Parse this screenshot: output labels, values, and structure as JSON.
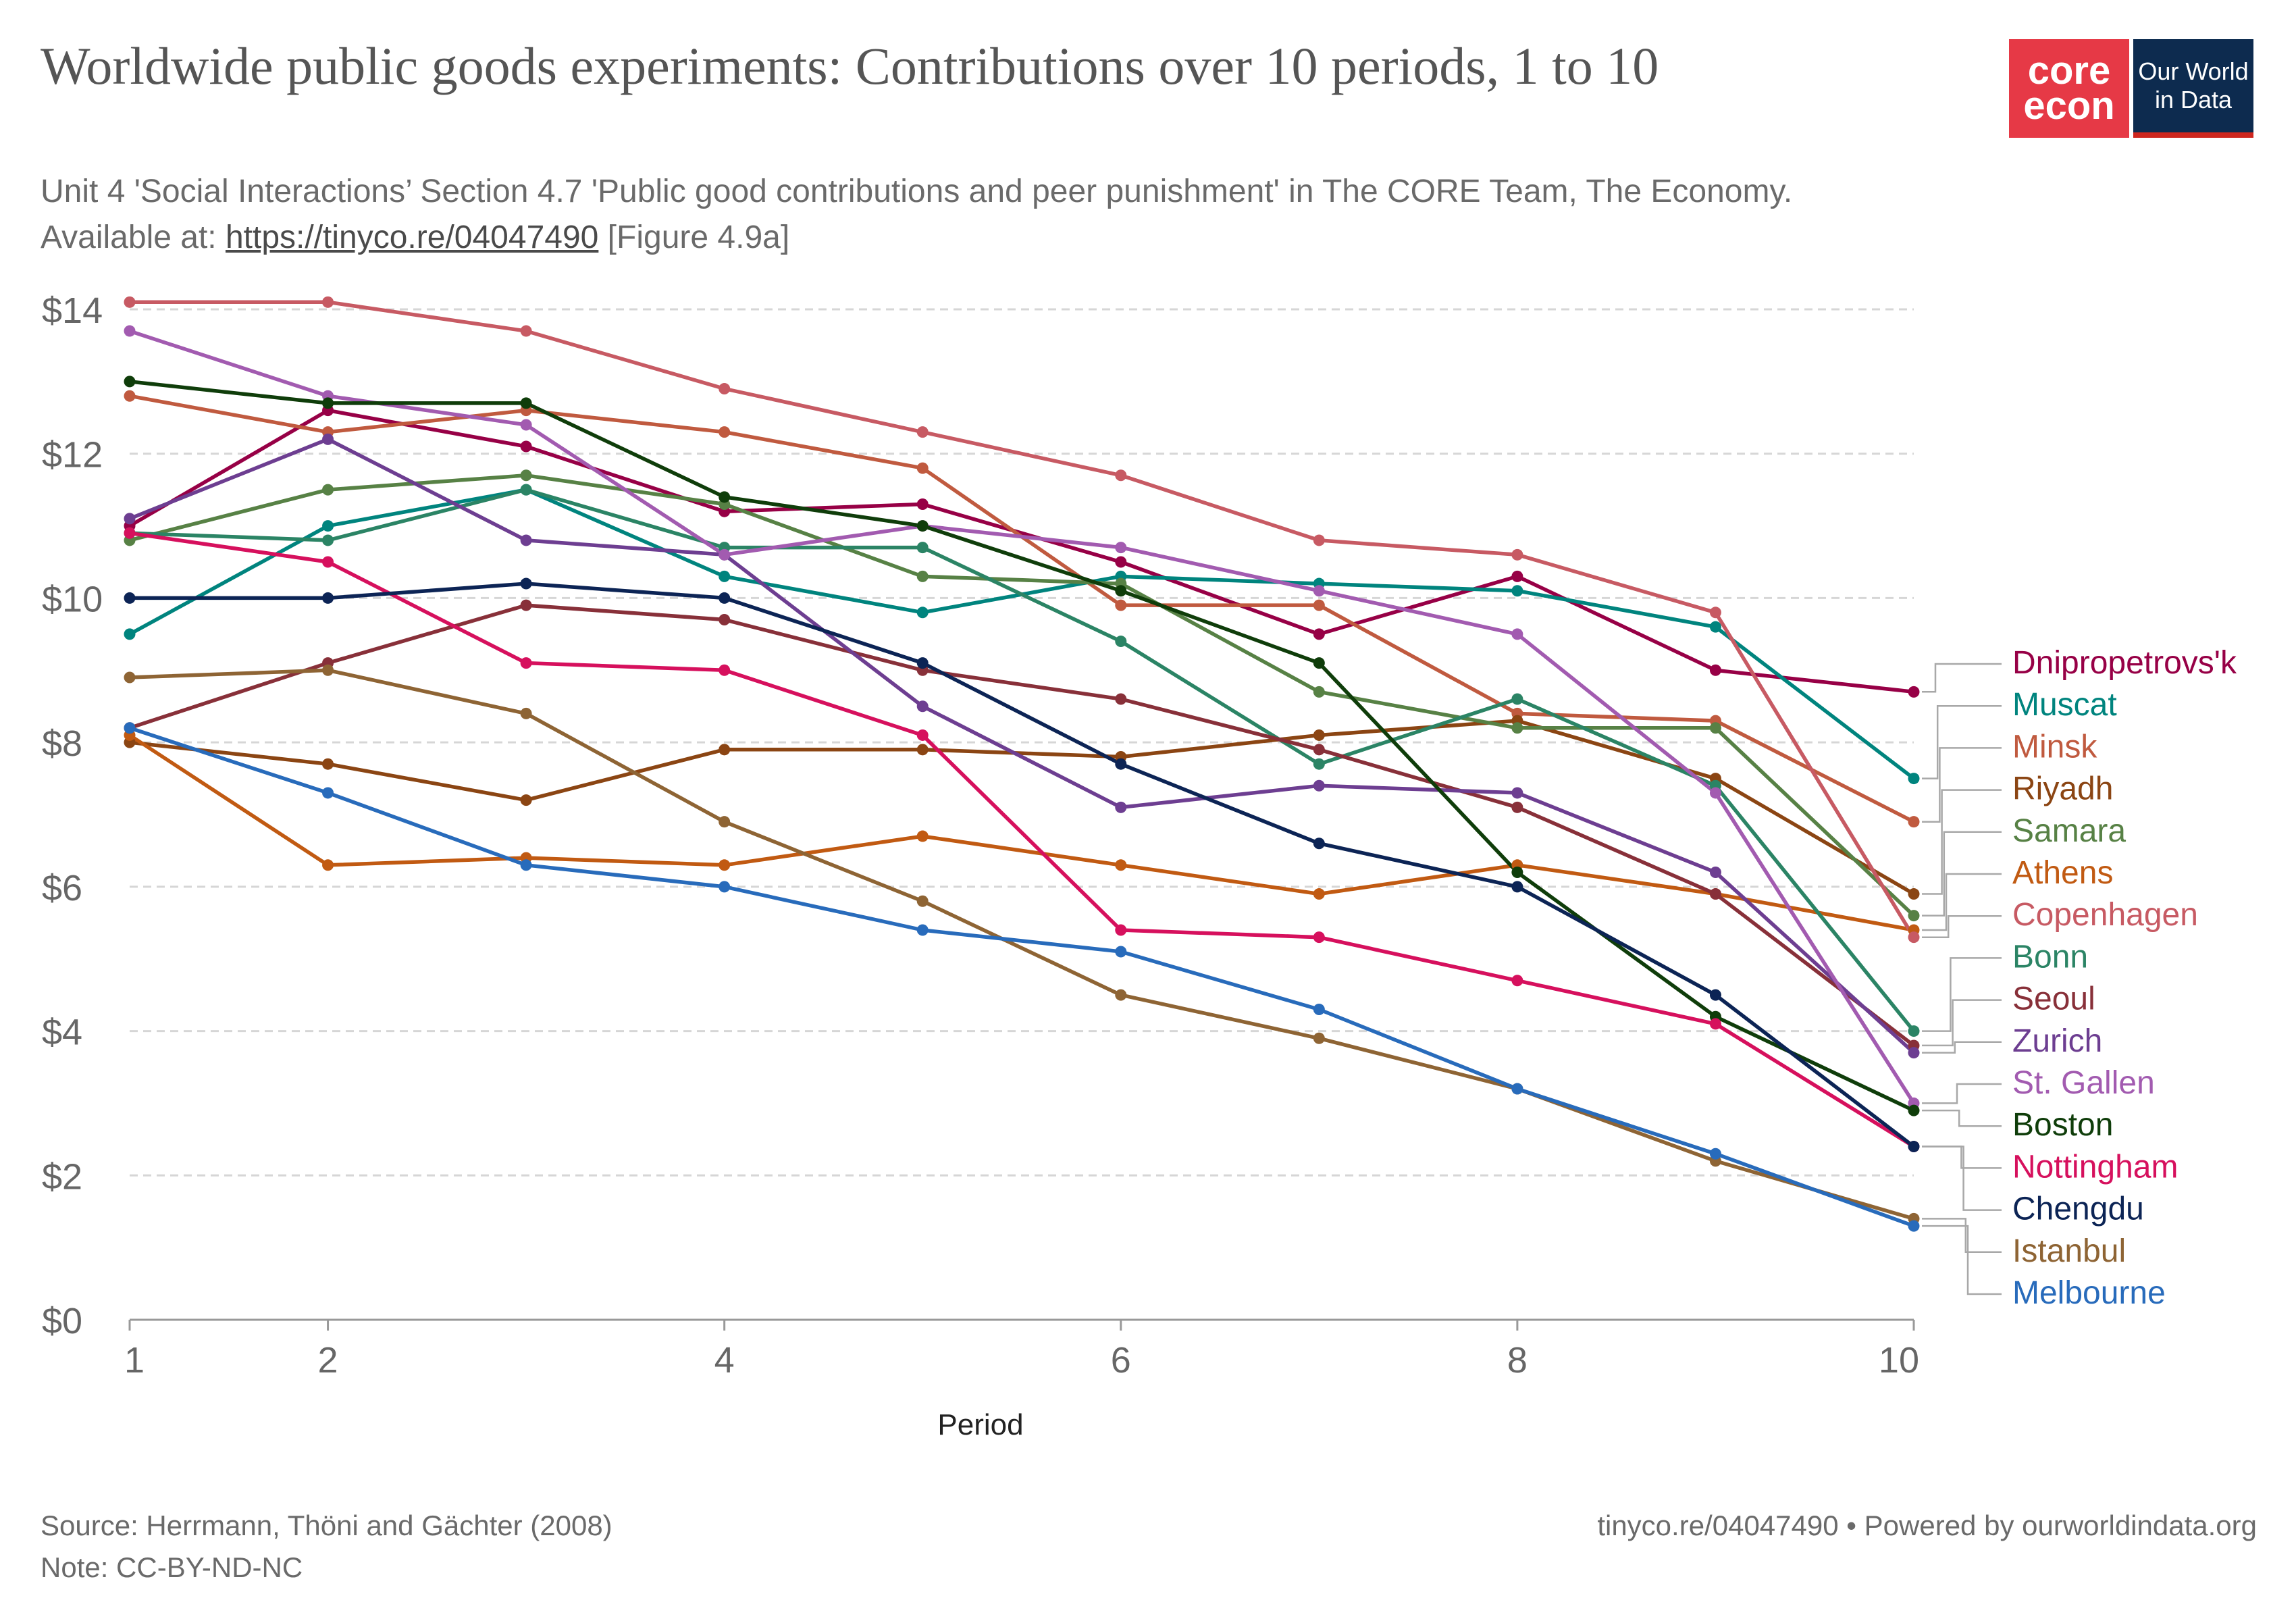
{
  "header": {
    "title": "Worldwide public goods experiments: Contributions over 10 periods, 1 to 10",
    "subtitle_line1": "Unit 4 'Social Interactions’ Section 4.7 'Public good contributions and peer punishment' in The CORE Team, The Economy.",
    "subtitle_prefix": "Available at: ",
    "subtitle_link": "https://tinyco.re/04047490",
    "subtitle_suffix": " [Figure 4.9a]"
  },
  "logo": {
    "core_line1": "core",
    "core_line2": "econ",
    "owid_line1": "Our World",
    "owid_line2": "in Data",
    "core_color": "#e63946",
    "owid_color": "#0d2b4f"
  },
  "footer": {
    "source": "Source: Herrmann, Thöni and Gächter (2008)",
    "note": "Note: CC-BY-ND-NC",
    "right_link": "tinyco.re/04047490",
    "right_suffix": " • Powered by ourworldindata.org"
  },
  "chart_data": {
    "type": "line",
    "title": "Worldwide public goods experiments: Contributions over 10 periods, 1 to 10",
    "xlabel": "Period",
    "ylabel": "",
    "x": [
      1,
      2,
      3,
      4,
      5,
      6,
      7,
      8,
      9,
      10
    ],
    "xlim": [
      1,
      10
    ],
    "xticks": [
      1,
      2,
      4,
      6,
      8,
      10
    ],
    "ylim": [
      0,
      14
    ],
    "yticks": [
      0,
      2,
      4,
      6,
      8,
      10,
      12,
      14
    ],
    "ytick_labels": [
      "$0",
      "$2",
      "$4",
      "$6",
      "$8",
      "$10",
      "$12",
      "$14"
    ],
    "grid": "horizontal dashed",
    "legend": "right, labels at line ends",
    "series": [
      {
        "name": "Dnipropetrovs'k",
        "color": "#970046",
        "values": [
          11.0,
          12.6,
          12.1,
          11.2,
          11.3,
          10.5,
          9.5,
          10.3,
          9.0,
          8.7
        ]
      },
      {
        "name": "Muscat",
        "color": "#00847e",
        "values": [
          9.5,
          11.0,
          11.5,
          10.3,
          9.8,
          10.3,
          10.2,
          10.1,
          9.6,
          7.5
        ]
      },
      {
        "name": "Minsk",
        "color": "#c05a3f",
        "values": [
          12.8,
          12.3,
          12.6,
          12.3,
          11.8,
          9.9,
          9.9,
          8.4,
          8.3,
          6.9
        ]
      },
      {
        "name": "Riyadh",
        "color": "#8b4513",
        "values": [
          8.0,
          7.7,
          7.2,
          7.9,
          7.9,
          7.8,
          8.1,
          8.3,
          7.5,
          5.9
        ]
      },
      {
        "name": "Samara",
        "color": "#578145",
        "values": [
          10.8,
          11.5,
          11.7,
          11.3,
          10.3,
          10.2,
          8.7,
          8.2,
          8.2,
          5.6
        ]
      },
      {
        "name": "Athens",
        "color": "#c15a12",
        "values": [
          8.1,
          6.3,
          6.4,
          6.3,
          6.7,
          6.3,
          5.9,
          6.3,
          5.9,
          5.4
        ]
      },
      {
        "name": "Copenhagen",
        "color": "#c75a63",
        "values": [
          14.1,
          14.1,
          13.7,
          12.9,
          12.3,
          11.7,
          10.8,
          10.6,
          9.8,
          5.3
        ]
      },
      {
        "name": "Bonn",
        "color": "#2b8465",
        "values": [
          10.9,
          10.8,
          11.5,
          10.7,
          10.7,
          9.4,
          7.7,
          8.6,
          7.4,
          4.0
        ]
      },
      {
        "name": "Seoul",
        "color": "#883039",
        "values": [
          8.2,
          9.1,
          9.9,
          9.7,
          9.0,
          8.6,
          7.9,
          7.1,
          5.9,
          3.8
        ]
      },
      {
        "name": "Zurich",
        "color": "#6d3e91",
        "values": [
          11.1,
          12.2,
          10.8,
          10.6,
          8.5,
          7.1,
          7.4,
          7.3,
          6.2,
          3.7
        ]
      },
      {
        "name": "St. Gallen",
        "color": "#a25bb0",
        "values": [
          13.7,
          12.8,
          12.4,
          10.6,
          11.0,
          10.7,
          10.1,
          9.5,
          7.3,
          3.0
        ]
      },
      {
        "name": "Boston",
        "color": "#0f3d0a",
        "values": [
          13.0,
          12.7,
          12.7,
          11.4,
          11.0,
          10.1,
          9.1,
          6.2,
          4.2,
          2.9
        ]
      },
      {
        "name": "Nottingham",
        "color": "#d6105d",
        "values": [
          10.9,
          10.5,
          9.1,
          9.0,
          8.1,
          5.4,
          5.3,
          4.7,
          4.1,
          2.4
        ]
      },
      {
        "name": "Chengdu",
        "color": "#0c2455",
        "values": [
          10.0,
          10.0,
          10.2,
          10.0,
          9.1,
          7.7,
          6.6,
          6.0,
          4.5,
          2.4
        ]
      },
      {
        "name": "Istanbul",
        "color": "#8e6434",
        "values": [
          8.9,
          9.0,
          8.4,
          6.9,
          5.8,
          4.5,
          3.9,
          3.2,
          2.2,
          1.4
        ]
      },
      {
        "name": "Melbourne",
        "color": "#286bbb",
        "values": [
          8.2,
          7.3,
          6.3,
          6.0,
          5.4,
          5.1,
          4.3,
          3.2,
          2.3,
          1.3
        ]
      }
    ]
  }
}
